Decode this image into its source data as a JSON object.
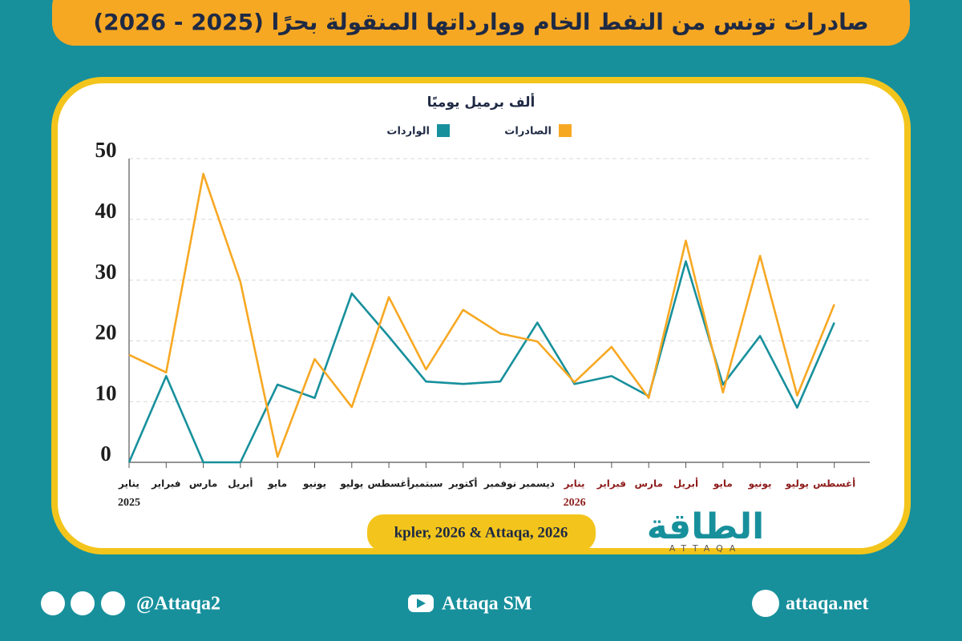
{
  "header": {
    "title": "صادرات تونس من النفط الخام ووارداتها المنقولة بحرًا (2025 - 2026)"
  },
  "chart_data": {
    "type": "line",
    "y_label": "ألف برميل يوميًا",
    "categories": [
      "يناير",
      "فبراير",
      "مارس",
      "أبريل",
      "مايو",
      "يونيو",
      "يوليو",
      "أغسطس",
      "سبتمبر",
      "أكتوبر",
      "نوفمبر",
      "ديسمبر",
      "يناير",
      "فبراير",
      "مارس",
      "أبريل",
      "مايو",
      "يونيو",
      "يوليو",
      "أغسطس"
    ],
    "category_years": [
      "2025",
      null,
      null,
      null,
      null,
      null,
      null,
      null,
      null,
      null,
      null,
      null,
      "2026",
      null,
      null,
      null,
      null,
      null,
      null,
      null
    ],
    "year_colors": [
      "#1d1d1d",
      "#8e1c1c"
    ],
    "series": [
      {
        "name": "الصادرات",
        "color": "#f7a823",
        "values": [
          17.7,
          14.8,
          47.5,
          29.7,
          0.9,
          17,
          9.1,
          27.2,
          15.3,
          25.1,
          21.2,
          19.9,
          13.2,
          19,
          10.6,
          36.5,
          11.5,
          34,
          11,
          26
        ]
      },
      {
        "name": "الواردات",
        "color": "#17909c",
        "values": [
          0,
          14.2,
          0,
          0,
          12.8,
          10.6,
          27.8,
          20.7,
          13.3,
          12.9,
          13.3,
          23,
          12.9,
          14.2,
          10.9,
          33.1,
          12.8,
          20.8,
          9,
          23
        ]
      }
    ],
    "ylim": [
      0,
      50
    ],
    "yticks": [
      0,
      10,
      20,
      30,
      40,
      50
    ],
    "grid": true
  },
  "source": "kpler, 2026 & Attaqa, 2026",
  "logo": {
    "name": "الطاقة",
    "sub": "ATTAQA"
  },
  "footer": {
    "social": "@Attaqa2",
    "youtube": "Attaqa SM",
    "site": "attaqa.net"
  }
}
